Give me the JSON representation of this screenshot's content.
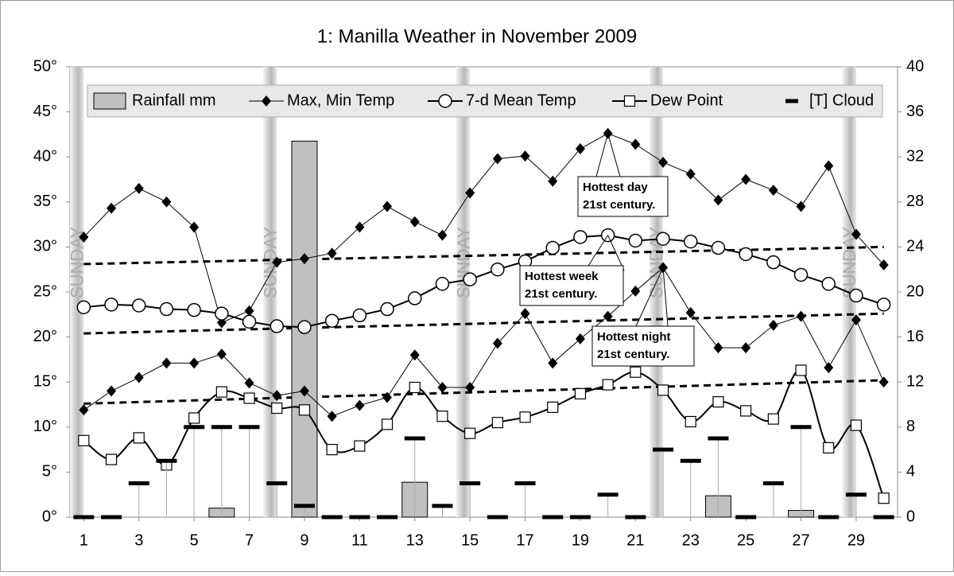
{
  "chart_data": {
    "type": "combo",
    "title": "1: Manilla Weather in November 2009",
    "x": [
      1,
      2,
      3,
      4,
      5,
      6,
      7,
      8,
      9,
      10,
      11,
      12,
      13,
      14,
      15,
      16,
      17,
      18,
      19,
      20,
      21,
      22,
      23,
      24,
      25,
      26,
      27,
      28,
      29,
      30
    ],
    "xlim": [
      0.5,
      30.5
    ],
    "xticks": [
      1,
      3,
      5,
      7,
      9,
      11,
      13,
      15,
      17,
      19,
      21,
      23,
      25,
      27,
      29
    ],
    "ylim": [
      0,
      50
    ],
    "yticks": [
      {
        "value": 0,
        "label": "0°"
      },
      {
        "value": 5,
        "label": "5°"
      },
      {
        "value": 10,
        "label": "10°"
      },
      {
        "value": 15,
        "label": "15°"
      },
      {
        "value": 20,
        "label": "20°"
      },
      {
        "value": 25,
        "label": "25°"
      },
      {
        "value": 30,
        "label": "30°"
      },
      {
        "value": 35,
        "label": "35°"
      },
      {
        "value": 40,
        "label": "40°"
      },
      {
        "value": 45,
        "label": "45°"
      },
      {
        "value": 50,
        "label": "50°"
      }
    ],
    "y2lim": [
      0,
      40
    ],
    "y2ticks": [
      0,
      4,
      8,
      12,
      16,
      20,
      24,
      28,
      32,
      36,
      40
    ],
    "sundays": [
      1,
      8,
      15,
      22,
      29
    ],
    "sunday_label": "SUNDAY",
    "series": [
      {
        "name": "Rainfall mm",
        "kind": "bar",
        "axis": "y2",
        "color": "#c0c0c0",
        "values": [
          0,
          0,
          0,
          0,
          0,
          0.8,
          0,
          0,
          33.4,
          0,
          0,
          0,
          3.1,
          0,
          0,
          0,
          0,
          0,
          0,
          0,
          0,
          0,
          0,
          1.9,
          0,
          0,
          0.6,
          0,
          0,
          0
        ]
      },
      {
        "name": "Max, Min Temp",
        "kind": "diamond",
        "color": "#000000",
        "values": [
          31.1,
          34.3,
          36.5,
          35.0,
          32.2,
          21.6,
          22.9,
          28.3,
          28.7,
          29.3,
          32.2,
          34.5,
          32.8,
          31.3,
          36.0,
          39.8,
          40.1,
          37.3,
          40.9,
          42.6,
          41.4,
          39.4,
          38.1,
          35.2,
          37.5,
          36.3,
          34.5,
          39.0,
          31.4,
          28.0
        ],
        "values_min": [
          11.9,
          14.0,
          15.5,
          17.1,
          17.1,
          18.1,
          14.9,
          13.5,
          14.0,
          11.2,
          12.4,
          13.3,
          18.0,
          14.4,
          14.4,
          19.3,
          22.6,
          17.1,
          19.8,
          22.3,
          25.1,
          27.7,
          22.7,
          18.8,
          18.8,
          21.3,
          22.3,
          16.6,
          21.9,
          15.0
        ]
      },
      {
        "name": "7-d Mean Temp",
        "kind": "circle",
        "color": "#000000",
        "values": [
          23.3,
          23.6,
          23.5,
          23.1,
          23.0,
          22.6,
          21.7,
          21.2,
          21.1,
          21.8,
          22.4,
          23.1,
          24.3,
          25.9,
          26.4,
          27.5,
          28.4,
          29.9,
          31.1,
          31.3,
          30.7,
          30.9,
          30.6,
          29.9,
          29.2,
          28.3,
          26.9,
          25.9,
          24.6,
          23.6
        ]
      },
      {
        "name": "Dew Point",
        "kind": "square",
        "color": "#000000",
        "values": [
          8.5,
          6.4,
          8.8,
          5.8,
          11.0,
          13.9,
          13.2,
          12.1,
          11.9,
          7.5,
          7.9,
          10.3,
          14.4,
          11.2,
          9.3,
          10.5,
          11.1,
          12.2,
          13.7,
          14.7,
          16.1,
          14.1,
          10.6,
          12.8,
          11.8,
          10.9,
          16.3,
          7.7,
          10.2,
          2.1
        ]
      },
      {
        "name": "[T] Cloud",
        "kind": "dash",
        "axis": "y2",
        "color": "#000000",
        "values": [
          0,
          0,
          3,
          5,
          8,
          8,
          8,
          3,
          1,
          0,
          0,
          0,
          7,
          1,
          3,
          0,
          3,
          0,
          0,
          2,
          0,
          6,
          5,
          7,
          0,
          3,
          8,
          0,
          2,
          0
        ]
      }
    ],
    "reference_lines": [
      {
        "x": [
          1,
          30
        ],
        "values": [
          28.1,
          30.0
        ]
      },
      {
        "x": [
          1,
          30
        ],
        "values": [
          20.4,
          22.6
        ]
      },
      {
        "x": [
          1,
          30
        ],
        "values": [
          12.6,
          15.2
        ]
      }
    ],
    "annotations": [
      {
        "x": 20,
        "lines": [
          "Hottest day",
          "21st century."
        ]
      },
      {
        "x": 20,
        "lines": [
          "Hottest week",
          "21st century."
        ]
      },
      {
        "x": 22,
        "lines": [
          "Hottest night",
          "21st century."
        ]
      }
    ]
  }
}
